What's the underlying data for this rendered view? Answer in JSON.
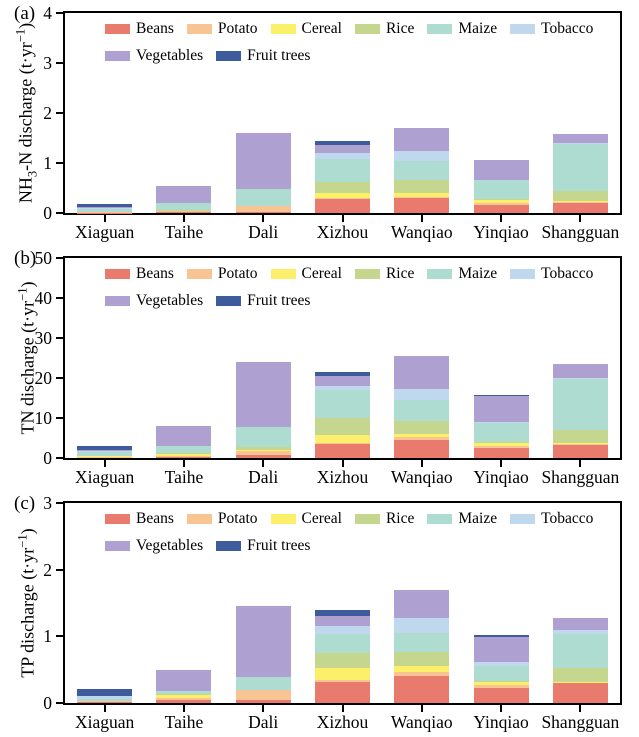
{
  "chart_data": [
    {
      "type": "bar",
      "stacked": true,
      "panel_label": "(a)",
      "ylabel": "NH3-N discharge (t·yr−1)",
      "ylabel_parts": [
        {
          "t": "NH"
        },
        {
          "t": "3",
          "sub": true
        },
        {
          "t": "-N discharge (t·yr"
        },
        {
          "t": "−1",
          "sup": true
        },
        {
          "t": ")"
        }
      ],
      "ylim": [
        0,
        4
      ],
      "yticks": [
        0,
        1,
        2,
        3,
        4
      ],
      "grid": false,
      "legend_position": "top-left-inside",
      "legend_rows": [
        [
          "Beans",
          "Potato",
          "Cereal",
          "Rice",
          "Maize",
          "Tobacco"
        ],
        [
          "Vegetables",
          "Fruit trees"
        ]
      ],
      "categories": [
        "Xiaguan",
        "Taihe",
        "Dali",
        "Xizhou",
        "Wanqiao",
        "Yinqiao",
        "Shangguan"
      ],
      "series": [
        {
          "name": "Beans",
          "color": "#E87A6E",
          "values": [
            0.01,
            0.02,
            0.02,
            0.28,
            0.3,
            0.17,
            0.22
          ]
        },
        {
          "name": "Potato",
          "color": "#F8C494",
          "values": [
            0.01,
            0.03,
            0.12,
            0.02,
            0.03,
            0.04,
            0.01
          ]
        },
        {
          "name": "Cereal",
          "color": "#FCF06A",
          "values": [
            0.0,
            0.01,
            0.0,
            0.11,
            0.07,
            0.05,
            0.02
          ]
        },
        {
          "name": "Rice",
          "color": "#C5D78F",
          "values": [
            0.0,
            0.01,
            0.0,
            0.21,
            0.27,
            0.03,
            0.2
          ]
        },
        {
          "name": "Maize",
          "color": "#AEDCD0",
          "values": [
            0.07,
            0.14,
            0.35,
            0.47,
            0.38,
            0.37,
            0.93
          ]
        },
        {
          "name": "Tobacco",
          "color": "#BFD8ED",
          "values": [
            0.01,
            0.0,
            0.0,
            0.11,
            0.2,
            0.0,
            0.02
          ]
        },
        {
          "name": "Vegetables",
          "color": "#AFA0D2",
          "values": [
            0.02,
            0.33,
            1.12,
            0.16,
            0.46,
            0.4,
            0.18
          ]
        },
        {
          "name": "Fruit trees",
          "color": "#3E5C9B",
          "values": [
            0.06,
            0.0,
            0.0,
            0.08,
            0.0,
            0.0,
            0.0
          ]
        }
      ]
    },
    {
      "type": "bar",
      "stacked": true,
      "panel_label": "(b)",
      "ylabel": "TN discharge (t·yr−1)",
      "ylabel_parts": [
        {
          "t": "TN discharge (t·yr"
        },
        {
          "t": "−1",
          "sup": true
        },
        {
          "t": ")"
        }
      ],
      "ylim": [
        0,
        50
      ],
      "yticks": [
        0,
        10,
        20,
        30,
        40,
        50
      ],
      "grid": false,
      "legend_position": "top-left-inside",
      "legend_rows": [
        [
          "Beans",
          "Potato",
          "Cereal",
          "Rice",
          "Maize",
          "Tobacco"
        ],
        [
          "Vegetables",
          "Fruit trees"
        ]
      ],
      "categories": [
        "Xiaguan",
        "Taihe",
        "Dali",
        "Xizhou",
        "Wanqiao",
        "Yinqiao",
        "Shangguan"
      ],
      "series": [
        {
          "name": "Beans",
          "color": "#E87A6E",
          "values": [
            0.2,
            0.3,
            0.7,
            3.5,
            4.6,
            2.5,
            3.4
          ]
        },
        {
          "name": "Potato",
          "color": "#F8C494",
          "values": [
            0.15,
            0.3,
            1.0,
            0.2,
            0.7,
            0.5,
            0.1
          ]
        },
        {
          "name": "Cereal",
          "color": "#FCF06A",
          "values": [
            0.05,
            0.5,
            0.3,
            2.0,
            0.8,
            0.7,
            0.2
          ]
        },
        {
          "name": "Rice",
          "color": "#C5D78F",
          "values": [
            0.0,
            0.2,
            0.8,
            4.3,
            3.2,
            0.2,
            3.2
          ]
        },
        {
          "name": "Maize",
          "color": "#AEDCD0",
          "values": [
            1.3,
            1.7,
            4.9,
            6.9,
            5.1,
            5.0,
            13.0
          ]
        },
        {
          "name": "Tobacco",
          "color": "#BFD8ED",
          "values": [
            0.05,
            0.0,
            0.0,
            1.0,
            2.9,
            0.2,
            0.2
          ]
        },
        {
          "name": "Vegetables",
          "color": "#AFA0D2",
          "values": [
            0.15,
            5.0,
            16.2,
            2.5,
            8.1,
            6.4,
            3.3
          ]
        },
        {
          "name": "Fruit trees",
          "color": "#3E5C9B",
          "values": [
            1.0,
            0.0,
            0.0,
            1.0,
            0.0,
            0.2,
            0.0
          ]
        }
      ]
    },
    {
      "type": "bar",
      "stacked": true,
      "panel_label": "(c)",
      "ylabel": "TP discharge (t·yr−1)",
      "ylabel_parts": [
        {
          "t": "TP discharge (t·yr"
        },
        {
          "t": "−1",
          "sup": true
        },
        {
          "t": ")"
        }
      ],
      "ylim": [
        0,
        3
      ],
      "yticks": [
        0,
        1,
        2,
        3
      ],
      "grid": false,
      "legend_position": "top-left-inside",
      "legend_rows": [
        [
          "Beans",
          "Potato",
          "Cereal",
          "Rice",
          "Maize",
          "Tobacco"
        ],
        [
          "Vegetables",
          "Fruit trees"
        ]
      ],
      "categories": [
        "Xiaguan",
        "Taihe",
        "Dali",
        "Xizhou",
        "Wanqiao",
        "Yinqiao",
        "Shangguan"
      ],
      "series": [
        {
          "name": "Beans",
          "color": "#E87A6E",
          "values": [
            0.01,
            0.05,
            0.05,
            0.31,
            0.41,
            0.23,
            0.3
          ]
        },
        {
          "name": "Potato",
          "color": "#F8C494",
          "values": [
            0.02,
            0.03,
            0.14,
            0.03,
            0.06,
            0.04,
            0.01
          ]
        },
        {
          "name": "Cereal",
          "color": "#FCF06A",
          "values": [
            0.0,
            0.04,
            0.0,
            0.18,
            0.08,
            0.04,
            0.01
          ]
        },
        {
          "name": "Rice",
          "color": "#C5D78F",
          "values": [
            0.0,
            0.01,
            0.0,
            0.23,
            0.22,
            0.02,
            0.21
          ]
        },
        {
          "name": "Maize",
          "color": "#AEDCD0",
          "values": [
            0.03,
            0.05,
            0.2,
            0.28,
            0.28,
            0.23,
            0.51
          ]
        },
        {
          "name": "Tobacco",
          "color": "#BFD8ED",
          "values": [
            0.05,
            0.0,
            0.0,
            0.12,
            0.22,
            0.06,
            0.05
          ]
        },
        {
          "name": "Vegetables",
          "color": "#AFA0D2",
          "values": [
            0.0,
            0.32,
            1.06,
            0.16,
            0.42,
            0.37,
            0.19
          ]
        },
        {
          "name": "Fruit trees",
          "color": "#3E5C9B",
          "values": [
            0.1,
            0.0,
            0.0,
            0.08,
            0.0,
            0.03,
            0.0
          ]
        }
      ]
    }
  ]
}
